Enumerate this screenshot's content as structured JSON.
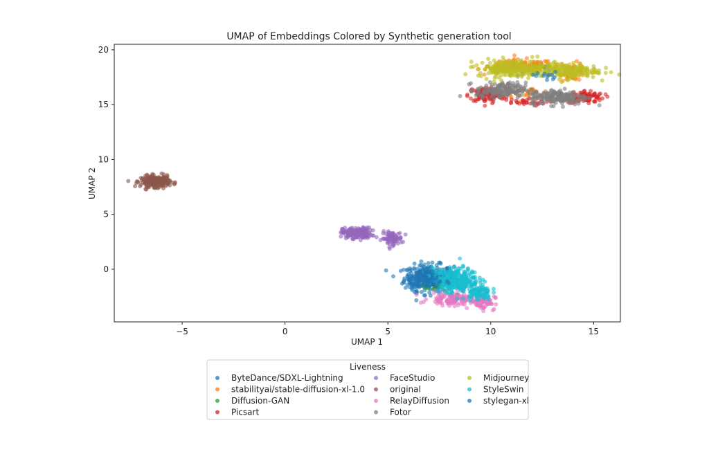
{
  "chart_data": {
    "type": "scatter",
    "title": "UMAP of Embeddings Colored by Synthetic generation tool",
    "xlabel": "UMAP 1",
    "ylabel": "UMAP 2",
    "xlim": [
      -8.3,
      16.3
    ],
    "ylim": [
      -4.8,
      20.5
    ],
    "xticks": [
      -5,
      0,
      5,
      10,
      15
    ],
    "xtick_labels": [
      "−5",
      "0",
      "5",
      "10",
      "15"
    ],
    "yticks": [
      0,
      5,
      10,
      15,
      20
    ],
    "ytick_labels": [
      "0",
      "5",
      "10",
      "15",
      "20"
    ],
    "legend": {
      "title": "Liveness",
      "placement": "below plot, center",
      "columns": 3
    },
    "series": [
      {
        "name": "ByteDance/SDXL-Lightning",
        "color": "#1f77b4",
        "clusters": [
          {
            "cx": 7.0,
            "cy": -0.8,
            "sx": 0.6,
            "sy": 0.6,
            "n": 320
          },
          {
            "cx": 12.3,
            "cy": 18.2,
            "sx": 0.5,
            "sy": 0.3,
            "n": 20
          }
        ]
      },
      {
        "name": "stabilityai/stable-diffusion-xl-1.0",
        "color": "#ff7f0e",
        "clusters": [
          {
            "cx": 11.5,
            "cy": 18.5,
            "sx": 0.8,
            "sy": 0.3,
            "n": 120
          },
          {
            "cx": 14.0,
            "cy": 18.0,
            "sx": 0.3,
            "sy": 0.4,
            "n": 40
          },
          {
            "cx": 11.8,
            "cy": 16.1,
            "sx": 0.6,
            "sy": 0.2,
            "n": 30
          }
        ]
      },
      {
        "name": "Diffusion-GAN",
        "color": "#2ca02c",
        "clusters": [
          {
            "cx": 7.2,
            "cy": -1.8,
            "sx": 0.5,
            "sy": 0.3,
            "n": 12
          }
        ]
      },
      {
        "name": "Picsart",
        "color": "#d62728",
        "clusters": [
          {
            "cx": 9.8,
            "cy": 15.9,
            "sx": 0.45,
            "sy": 0.35,
            "n": 120
          },
          {
            "cx": 14.6,
            "cy": 15.7,
            "sx": 0.45,
            "sy": 0.3,
            "n": 90
          },
          {
            "cx": 11.5,
            "cy": 15.2,
            "sx": 0.6,
            "sy": 0.15,
            "n": 30
          }
        ]
      },
      {
        "name": "FaceStudio",
        "color": "#9467bd",
        "clusters": [
          {
            "cx": 3.5,
            "cy": 3.3,
            "sx": 0.35,
            "sy": 0.25,
            "n": 180
          },
          {
            "cx": 5.2,
            "cy": 2.8,
            "sx": 0.25,
            "sy": 0.3,
            "n": 90
          }
        ]
      },
      {
        "name": "original",
        "color": "#8c564b",
        "clusters": [
          {
            "cx": -6.3,
            "cy": 8.0,
            "sx": 0.35,
            "sy": 0.25,
            "n": 260
          }
        ]
      },
      {
        "name": "RelayDiffusion",
        "color": "#e377c2",
        "clusters": [
          {
            "cx": 8.2,
            "cy": -2.7,
            "sx": 0.6,
            "sy": 0.3,
            "n": 120
          },
          {
            "cx": 9.6,
            "cy": -3.0,
            "sx": 0.3,
            "sy": 0.35,
            "n": 60
          }
        ]
      },
      {
        "name": "Fotor",
        "color": "#7f7f7f",
        "clusters": [
          {
            "cx": 10.5,
            "cy": 16.3,
            "sx": 0.6,
            "sy": 0.35,
            "n": 160
          },
          {
            "cx": 13.3,
            "cy": 15.7,
            "sx": 0.7,
            "sy": 0.35,
            "n": 170
          }
        ]
      },
      {
        "name": "Midjourney",
        "color": "#bcbd22",
        "clusters": [
          {
            "cx": 11.0,
            "cy": 18.3,
            "sx": 0.8,
            "sy": 0.4,
            "n": 230
          },
          {
            "cx": 13.6,
            "cy": 18.1,
            "sx": 0.8,
            "sy": 0.35,
            "n": 200
          }
        ]
      },
      {
        "name": "StyleSwin",
        "color": "#17becf",
        "clusters": [
          {
            "cx": 8.3,
            "cy": -1.0,
            "sx": 0.55,
            "sy": 0.55,
            "n": 300
          },
          {
            "cx": 9.4,
            "cy": -2.1,
            "sx": 0.3,
            "sy": 0.35,
            "n": 80
          }
        ]
      },
      {
        "name": "stylegan-xl",
        "color": "#1f77b4",
        "clusters": [
          {
            "cx": 6.8,
            "cy": -1.0,
            "sx": 0.45,
            "sy": 0.45,
            "n": 60
          },
          {
            "cx": 12.8,
            "cy": 17.6,
            "sx": 0.4,
            "sy": 0.2,
            "n": 12
          }
        ]
      }
    ]
  }
}
